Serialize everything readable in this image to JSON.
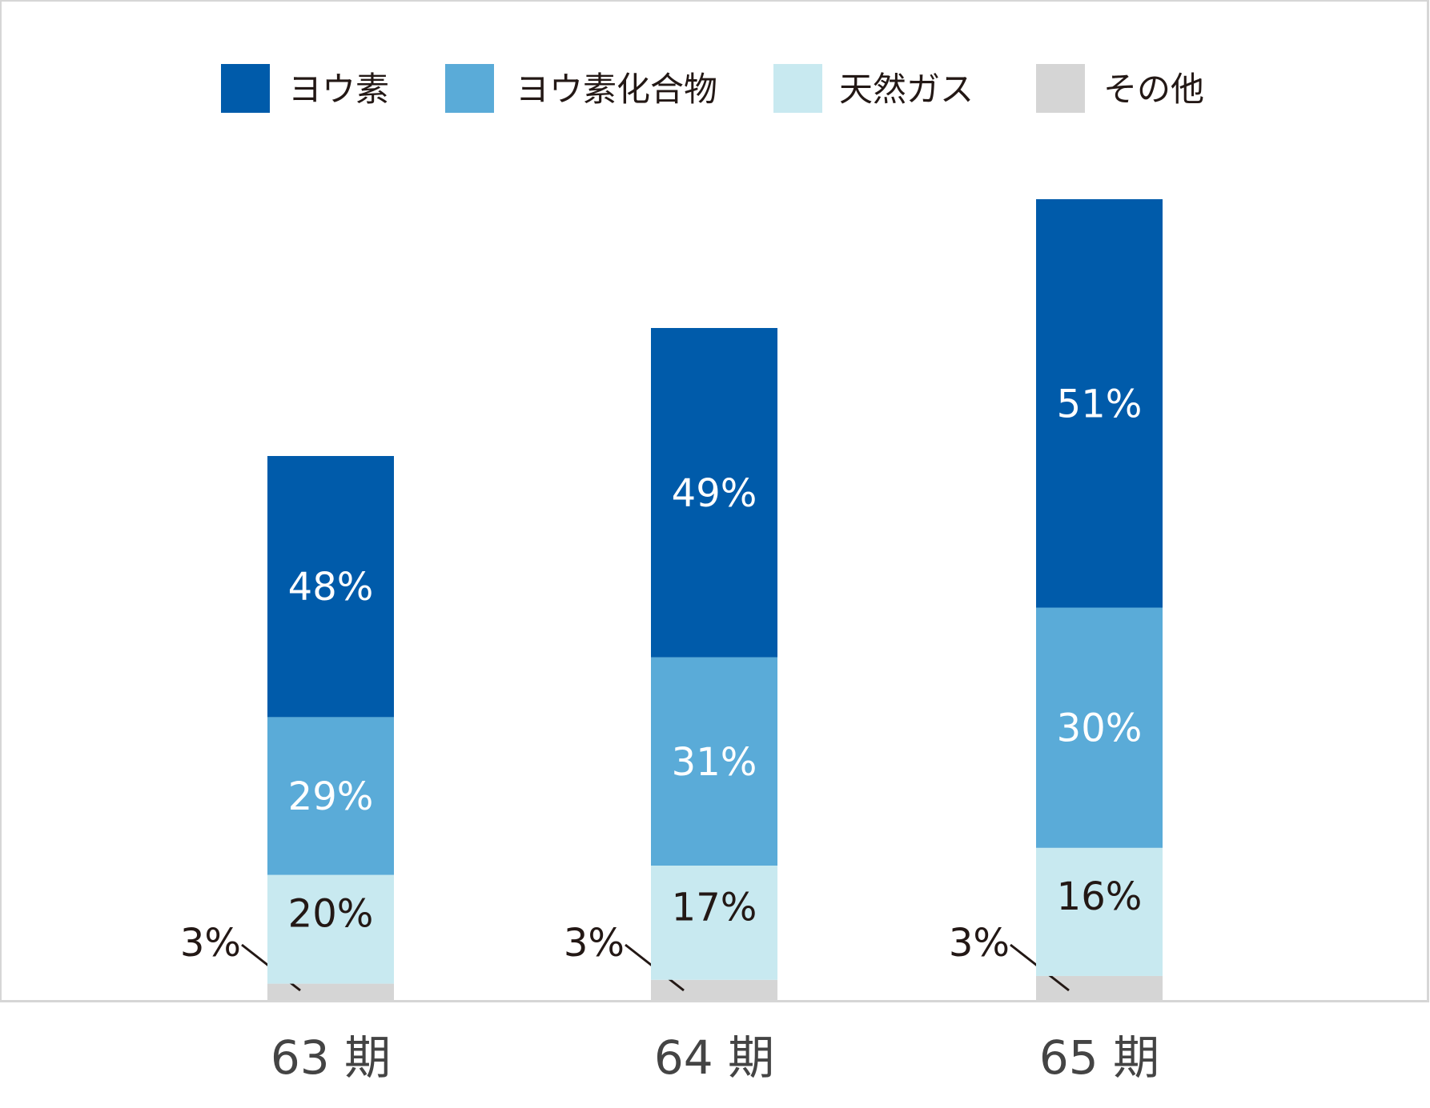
{
  "chart_data": {
    "type": "bar",
    "stacked": true,
    "categories": [
      "63 期",
      "64 期",
      "65 期"
    ],
    "series": [
      {
        "name": "その他",
        "values": [
          3,
          3,
          3
        ],
        "color": "#D5D5D5"
      },
      {
        "name": "天然ガス",
        "values": [
          20,
          17,
          16
        ],
        "color": "#C8E9F0"
      },
      {
        "name": "ヨウ素化合物",
        "values": [
          29,
          31,
          30
        ],
        "color": "#5AABD8"
      },
      {
        "name": "ヨウ素",
        "values": [
          48,
          49,
          51
        ],
        "color": "#005BAA"
      }
    ],
    "legend_order": [
      "ヨウ素",
      "ヨウ素化合物",
      "天然ガス",
      "その他"
    ],
    "data_labels": {
      "ヨウ素": [
        "48%",
        "49%",
        "51%"
      ],
      "ヨウ素化合物": [
        "29%",
        "31%",
        "30%"
      ],
      "天然ガス": [
        "20%",
        "17%",
        "16%"
      ],
      "その他": [
        "3%",
        "3%",
        "3%"
      ]
    },
    "unit": "%",
    "legend_position": "top",
    "grid": false,
    "title": "",
    "xlabel": "",
    "ylabel": ""
  }
}
